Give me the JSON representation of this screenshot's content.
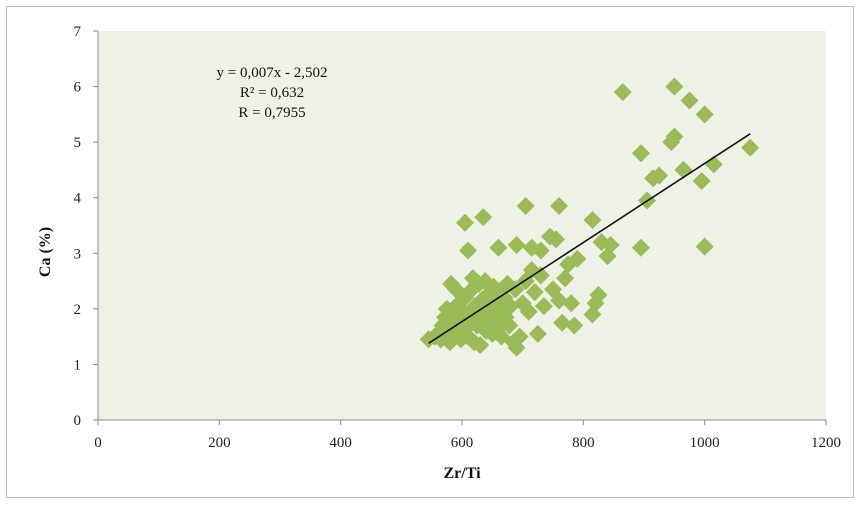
{
  "chart_data": {
    "type": "scatter",
    "title": "",
    "xlabel": "Zr/Ti",
    "ylabel": "Ca (%)",
    "xlim": [
      0,
      1200
    ],
    "ylim": [
      0,
      7
    ],
    "xticks": [
      0,
      200,
      400,
      600,
      800,
      1000,
      1200
    ],
    "xtick_labels": [
      "0",
      "200",
      "400",
      "600",
      "800",
      "1000",
      "1200"
    ],
    "yticks": [
      0,
      1,
      2,
      3,
      4,
      5,
      6,
      7
    ],
    "ytick_labels": [
      "0",
      "1",
      "2",
      "3",
      "4",
      "5",
      "6",
      "7"
    ],
    "grid": false,
    "legend": "none",
    "plot_background": "#eef1e6",
    "marker": "diamond",
    "marker_color": "#9bbb59",
    "trendline": {
      "x": [
        545,
        1075
      ],
      "y": [
        1.38,
        5.15
      ],
      "color": "#111111"
    },
    "annotations": {
      "equation": "y = 0,007x - 2,502",
      "r_squared": "R² = 0,632",
      "r": "R = 0,7955"
    },
    "series": [
      {
        "points": [
          [
            545,
            1.45
          ],
          [
            555,
            1.5
          ],
          [
            560,
            1.55
          ],
          [
            565,
            1.45
          ],
          [
            568,
            1.7
          ],
          [
            572,
            1.85
          ],
          [
            575,
            2.0
          ],
          [
            578,
            1.6
          ],
          [
            580,
            1.4
          ],
          [
            582,
            2.45
          ],
          [
            585,
            1.75
          ],
          [
            588,
            1.9
          ],
          [
            590,
            2.35
          ],
          [
            592,
            1.55
          ],
          [
            595,
            2.1
          ],
          [
            598,
            1.45
          ],
          [
            600,
            1.8
          ],
          [
            602,
            1.95
          ],
          [
            605,
            2.2
          ],
          [
            607,
            1.65
          ],
          [
            610,
            1.5
          ],
          [
            612,
            2.3
          ],
          [
            615,
            1.85
          ],
          [
            618,
            2.55
          ],
          [
            620,
            1.4
          ],
          [
            622,
            2.05
          ],
          [
            625,
            1.7
          ],
          [
            628,
            2.45
          ],
          [
            630,
            1.35
          ],
          [
            632,
            2.15
          ],
          [
            635,
            1.9
          ],
          [
            638,
            2.5
          ],
          [
            640,
            1.6
          ],
          [
            642,
            2.25
          ],
          [
            645,
            1.75
          ],
          [
            648,
            2.0
          ],
          [
            650,
            1.55
          ],
          [
            652,
            2.4
          ],
          [
            655,
            1.8
          ],
          [
            658,
            2.1
          ],
          [
            660,
            1.65
          ],
          [
            662,
            2.3
          ],
          [
            665,
            1.5
          ],
          [
            668,
            1.95
          ],
          [
            670,
            2.2
          ],
          [
            672,
            1.85
          ],
          [
            675,
            2.45
          ],
          [
            678,
            1.7
          ],
          [
            680,
            2.05
          ],
          [
            685,
            1.4
          ],
          [
            688,
            2.35
          ],
          [
            690,
            1.3
          ],
          [
            695,
            1.5
          ],
          [
            700,
            2.1
          ],
          [
            705,
            2.5
          ],
          [
            710,
            1.95
          ],
          [
            715,
            2.7
          ],
          [
            720,
            2.3
          ],
          [
            725,
            1.55
          ],
          [
            730,
            2.6
          ],
          [
            735,
            2.05
          ],
          [
            750,
            2.35
          ],
          [
            760,
            2.15
          ],
          [
            765,
            1.75
          ],
          [
            770,
            2.55
          ],
          [
            775,
            2.8
          ],
          [
            780,
            2.1
          ],
          [
            785,
            1.7
          ],
          [
            790,
            2.9
          ],
          [
            815,
            1.9
          ],
          [
            820,
            2.1
          ],
          [
            825,
            2.25
          ],
          [
            605,
            3.55
          ],
          [
            610,
            3.05
          ],
          [
            635,
            3.65
          ],
          [
            660,
            3.1
          ],
          [
            690,
            3.15
          ],
          [
            705,
            3.85
          ],
          [
            715,
            3.1
          ],
          [
            730,
            3.05
          ],
          [
            745,
            3.3
          ],
          [
            755,
            3.25
          ],
          [
            760,
            3.85
          ],
          [
            815,
            3.6
          ],
          [
            830,
            3.2
          ],
          [
            840,
            2.95
          ],
          [
            845,
            3.15
          ],
          [
            895,
            3.1
          ],
          [
            1000,
            3.12
          ],
          [
            865,
            5.9
          ],
          [
            895,
            4.8
          ],
          [
            905,
            3.95
          ],
          [
            915,
            4.35
          ],
          [
            925,
            4.4
          ],
          [
            945,
            5.0
          ],
          [
            950,
            5.1
          ],
          [
            950,
            6.0
          ],
          [
            965,
            4.5
          ],
          [
            975,
            5.75
          ],
          [
            995,
            4.3
          ],
          [
            1000,
            5.5
          ],
          [
            1015,
            4.6
          ],
          [
            1075,
            4.9
          ]
        ]
      }
    ]
  }
}
